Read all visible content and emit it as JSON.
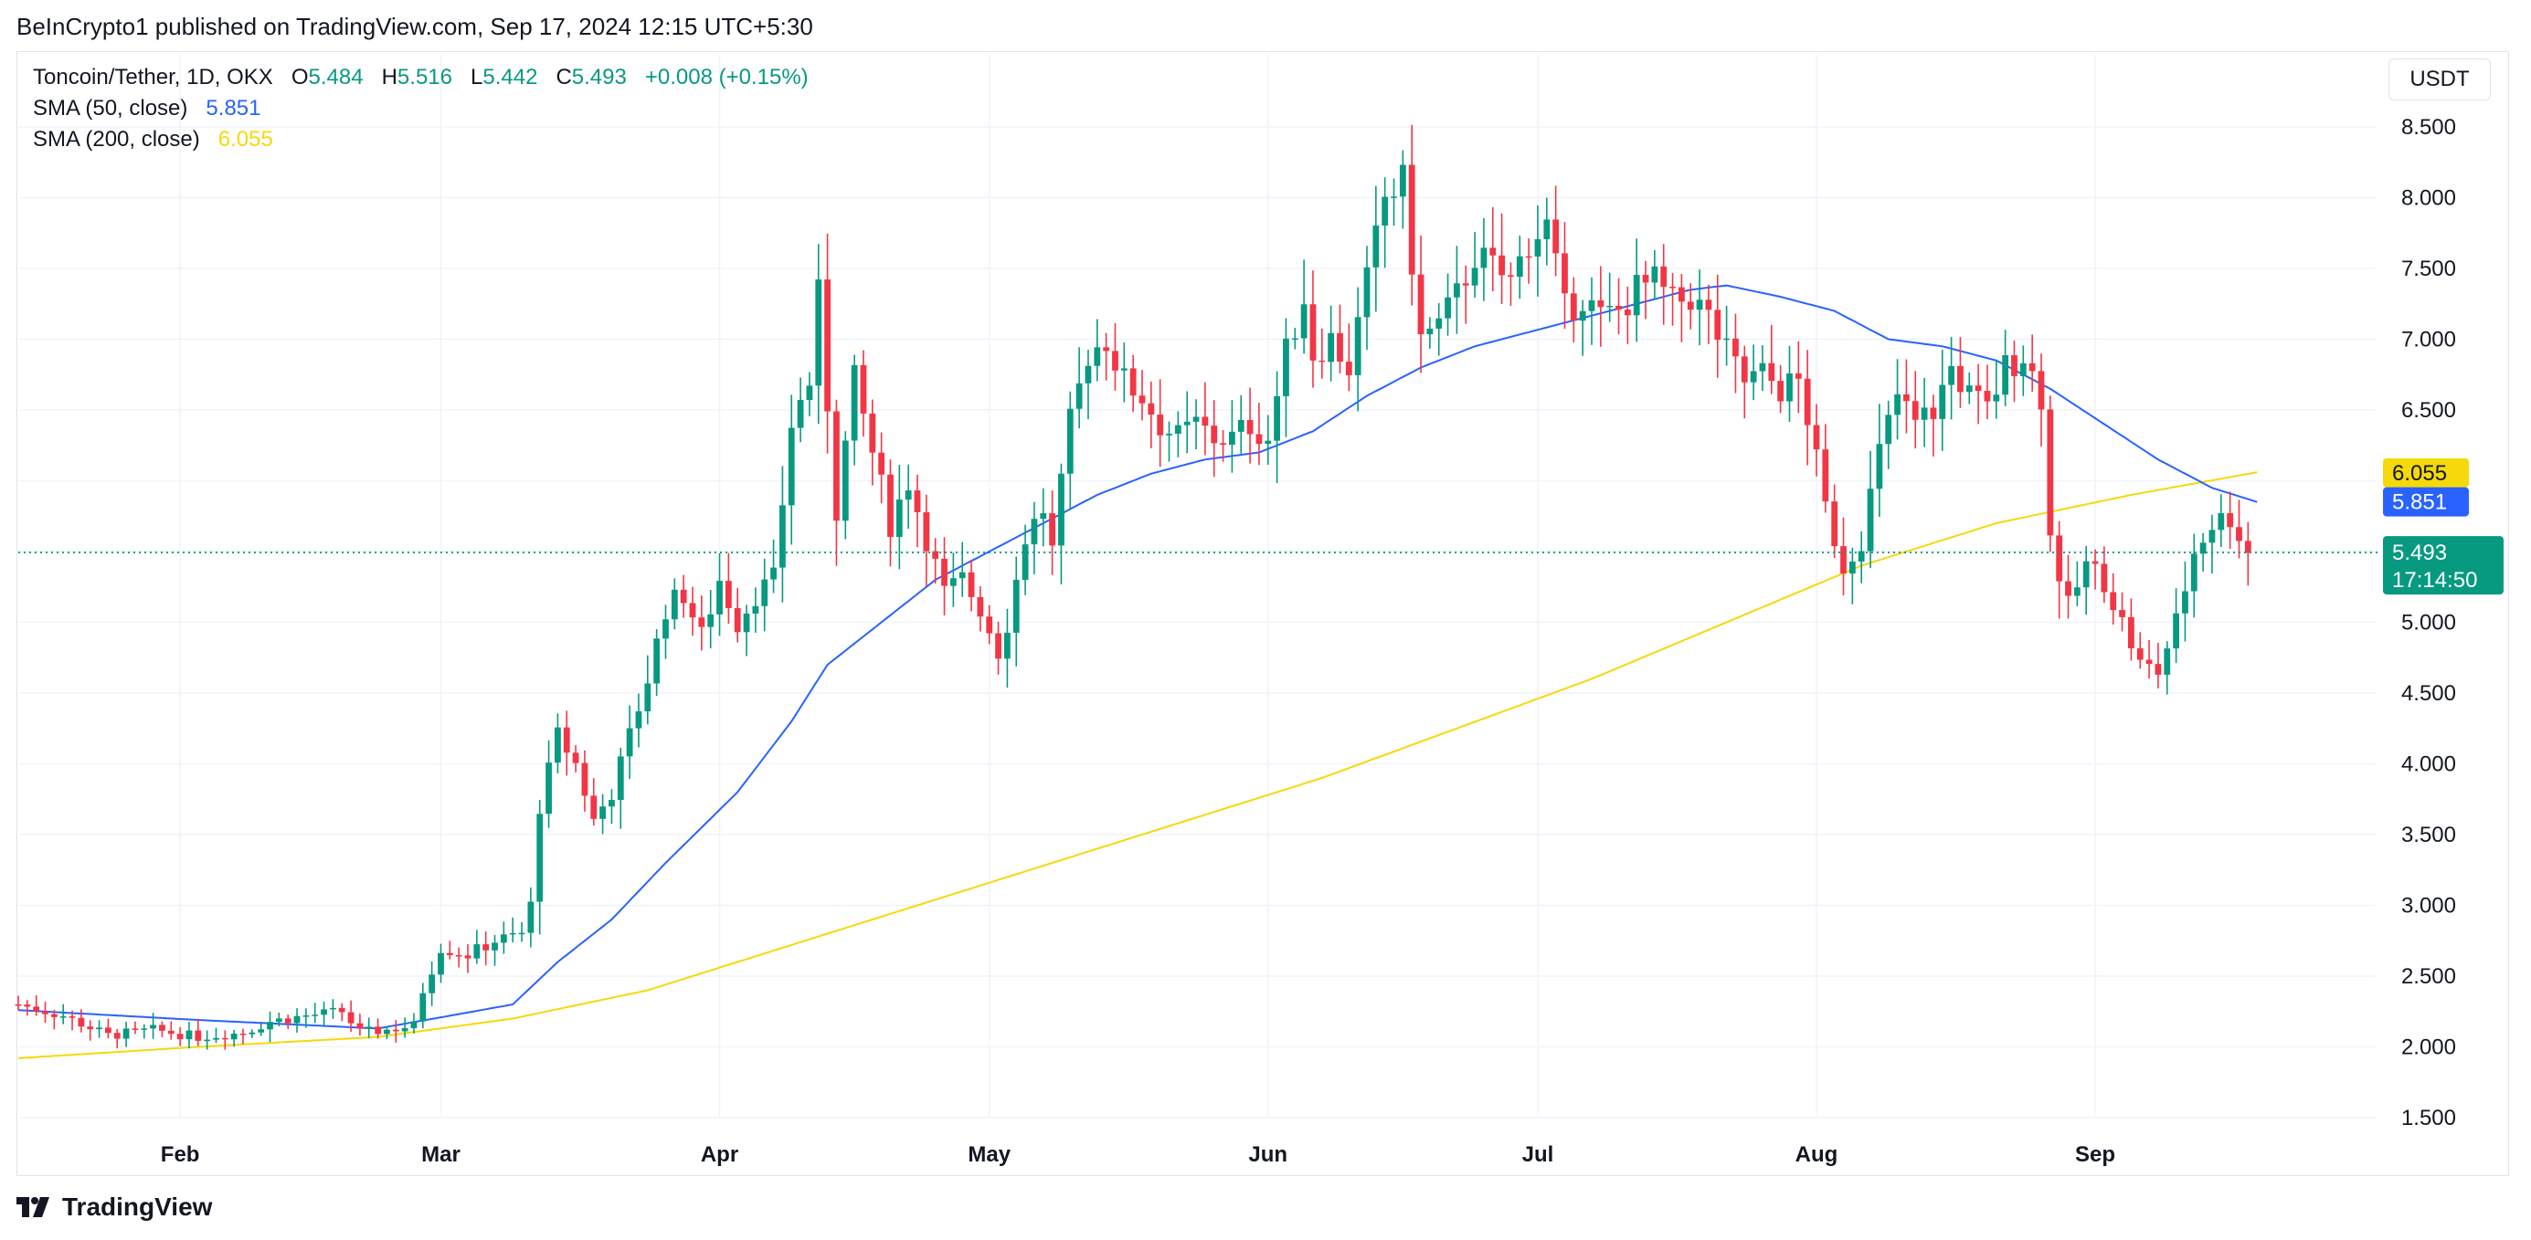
{
  "header": {
    "published": "BeInCrypto1 published on TradingView.com, Sep 17, 2024 12:15 UTC+5:30"
  },
  "legend": {
    "symbol": "Toncoin/Tether, 1D, OKX",
    "o_label": "O",
    "o_value": "5.484",
    "h_label": "H",
    "h_value": "5.516",
    "l_label": "L",
    "l_value": "5.442",
    "c_label": "C",
    "c_value": "5.493",
    "change": "+0.008 (+0.15%)",
    "sma50_label": "SMA (50, close)",
    "sma50_value": "5.851",
    "sma200_label": "SMA (200, close)",
    "sma200_value": "6.055"
  },
  "currency_button": "USDT",
  "brand": {
    "name": "TradingView"
  },
  "colors": {
    "up": "#089981",
    "down": "#f23645",
    "sma50": "#2962ff",
    "sma200": "#f5d90a",
    "grid": "#f0f3fa"
  },
  "chart_data": {
    "type": "candlestick",
    "title": "Toncoin/Tether, 1D, OKX",
    "ylim": [
      1.3,
      8.8
    ],
    "y_ticks": [
      "1.500",
      "2.000",
      "2.500",
      "3.000",
      "3.500",
      "4.000",
      "4.500",
      "5.000",
      "5.500",
      "6.000",
      "6.500",
      "7.000",
      "7.500",
      "8.000",
      "8.500"
    ],
    "x_ticks": [
      {
        "label": "Feb",
        "day": 18
      },
      {
        "label": "Mar",
        "day": 47
      },
      {
        "label": "Apr",
        "day": 78
      },
      {
        "label": "May",
        "day": 108
      },
      {
        "label": "Jun",
        "day": 139
      },
      {
        "label": "Jul",
        "day": 169
      },
      {
        "label": "Aug",
        "day": 200
      },
      {
        "label": "Sep",
        "day": 231
      }
    ],
    "x_range_days": [
      0,
      256
    ],
    "last_price": "5.493",
    "last_price_value": 5.493,
    "countdown": "17:14:50",
    "sma50_last": "5.851",
    "sma50_last_value": 5.851,
    "sma200_last": "6.055",
    "sma200_last_value": 6.055,
    "close_anchors": [
      [
        0,
        2.3
      ],
      [
        5,
        2.22
      ],
      [
        10,
        2.08
      ],
      [
        15,
        2.12
      ],
      [
        20,
        2.07
      ],
      [
        25,
        2.1
      ],
      [
        28,
        2.18
      ],
      [
        32,
        2.22
      ],
      [
        36,
        2.25
      ],
      [
        38,
        2.1
      ],
      [
        41,
        2.12
      ],
      [
        44,
        2.15
      ],
      [
        45,
        2.4
      ],
      [
        47,
        2.7
      ],
      [
        50,
        2.65
      ],
      [
        53,
        2.75
      ],
      [
        56,
        2.8
      ],
      [
        57,
        3.0
      ],
      [
        58,
        3.7
      ],
      [
        60,
        4.2
      ],
      [
        62,
        4.0
      ],
      [
        64,
        3.6
      ],
      [
        66,
        3.8
      ],
      [
        68,
        4.2
      ],
      [
        70,
        4.6
      ],
      [
        72,
        5.1
      ],
      [
        74,
        5.2
      ],
      [
        76,
        4.9
      ],
      [
        78,
        5.3
      ],
      [
        80,
        5.0
      ],
      [
        82,
        5.2
      ],
      [
        84,
        5.3
      ],
      [
        86,
        6.4
      ],
      [
        88,
        6.7
      ],
      [
        89,
        7.3
      ],
      [
        91,
        5.8
      ],
      [
        93,
        6.7
      ],
      [
        95,
        6.2
      ],
      [
        97,
        5.7
      ],
      [
        99,
        6.0
      ],
      [
        101,
        5.6
      ],
      [
        103,
        5.2
      ],
      [
        105,
        5.3
      ],
      [
        107,
        5.1
      ],
      [
        109,
        4.8
      ],
      [
        110,
        5.0
      ],
      [
        112,
        5.6
      ],
      [
        114,
        5.8
      ],
      [
        115,
        5.5
      ],
      [
        117,
        6.4
      ],
      [
        119,
        6.9
      ],
      [
        121,
        7.0
      ],
      [
        123,
        6.7
      ],
      [
        125,
        6.6
      ],
      [
        127,
        6.4
      ],
      [
        129,
        6.3
      ],
      [
        131,
        6.4
      ],
      [
        133,
        6.3
      ],
      [
        135,
        6.3
      ],
      [
        137,
        6.4
      ],
      [
        139,
        6.3
      ],
      [
        141,
        6.9
      ],
      [
        143,
        7.3
      ],
      [
        144,
        6.9
      ],
      [
        146,
        7.0
      ],
      [
        148,
        6.8
      ],
      [
        150,
        7.4
      ],
      [
        152,
        8.0
      ],
      [
        154,
        8.1
      ],
      [
        156,
        7.0
      ],
      [
        158,
        7.1
      ],
      [
        160,
        7.3
      ],
      [
        162,
        7.6
      ],
      [
        164,
        7.5
      ],
      [
        166,
        7.4
      ],
      [
        168,
        7.7
      ],
      [
        170,
        7.8
      ],
      [
        172,
        7.2
      ],
      [
        174,
        7.3
      ],
      [
        176,
        7.15
      ],
      [
        178,
        7.2
      ],
      [
        180,
        7.35
      ],
      [
        182,
        7.4
      ],
      [
        184,
        7.25
      ],
      [
        186,
        7.3
      ],
      [
        188,
        7.15
      ],
      [
        190,
        6.9
      ],
      [
        192,
        6.7
      ],
      [
        194,
        6.75
      ],
      [
        196,
        6.65
      ],
      [
        198,
        6.7
      ],
      [
        199,
        6.45
      ],
      [
        201,
        5.8
      ],
      [
        203,
        5.4
      ],
      [
        205,
        5.6
      ],
      [
        207,
        6.2
      ],
      [
        209,
        6.6
      ],
      [
        211,
        6.4
      ],
      [
        213,
        6.5
      ],
      [
        215,
        6.8
      ],
      [
        217,
        6.6
      ],
      [
        219,
        6.5
      ],
      [
        221,
        6.8
      ],
      [
        223,
        6.9
      ],
      [
        225,
        6.6
      ],
      [
        226,
        5.6
      ],
      [
        228,
        5.1
      ],
      [
        230,
        5.4
      ],
      [
        232,
        5.3
      ],
      [
        234,
        5.0
      ],
      [
        236,
        4.7
      ],
      [
        238,
        4.65
      ],
      [
        240,
        5.0
      ],
      [
        242,
        5.5
      ],
      [
        244,
        5.7
      ],
      [
        246,
        5.75
      ],
      [
        248,
        5.5
      ]
    ],
    "sma50_anchors": [
      [
        0,
        2.26
      ],
      [
        20,
        2.19
      ],
      [
        40,
        2.13
      ],
      [
        48,
        2.22
      ],
      [
        55,
        2.3
      ],
      [
        60,
        2.6
      ],
      [
        66,
        2.9
      ],
      [
        72,
        3.3
      ],
      [
        80,
        3.8
      ],
      [
        86,
        4.3
      ],
      [
        90,
        4.7
      ],
      [
        96,
        5.0
      ],
      [
        102,
        5.3
      ],
      [
        108,
        5.5
      ],
      [
        114,
        5.7
      ],
      [
        120,
        5.9
      ],
      [
        126,
        6.05
      ],
      [
        132,
        6.15
      ],
      [
        138,
        6.2
      ],
      [
        144,
        6.35
      ],
      [
        150,
        6.6
      ],
      [
        156,
        6.8
      ],
      [
        162,
        6.95
      ],
      [
        168,
        7.05
      ],
      [
        174,
        7.15
      ],
      [
        180,
        7.25
      ],
      [
        186,
        7.35
      ],
      [
        190,
        7.38
      ],
      [
        196,
        7.3
      ],
      [
        202,
        7.2
      ],
      [
        208,
        7.0
      ],
      [
        214,
        6.95
      ],
      [
        220,
        6.85
      ],
      [
        226,
        6.65
      ],
      [
        232,
        6.4
      ],
      [
        238,
        6.15
      ],
      [
        244,
        5.95
      ],
      [
        249,
        5.85
      ]
    ],
    "sma200_anchors": [
      [
        0,
        1.92
      ],
      [
        20,
        2.0
      ],
      [
        40,
        2.07
      ],
      [
        55,
        2.2
      ],
      [
        70,
        2.4
      ],
      [
        85,
        2.7
      ],
      [
        100,
        3.0
      ],
      [
        115,
        3.3
      ],
      [
        130,
        3.6
      ],
      [
        145,
        3.9
      ],
      [
        160,
        4.25
      ],
      [
        175,
        4.6
      ],
      [
        190,
        5.0
      ],
      [
        205,
        5.4
      ],
      [
        220,
        5.7
      ],
      [
        235,
        5.9
      ],
      [
        249,
        6.06
      ]
    ]
  }
}
